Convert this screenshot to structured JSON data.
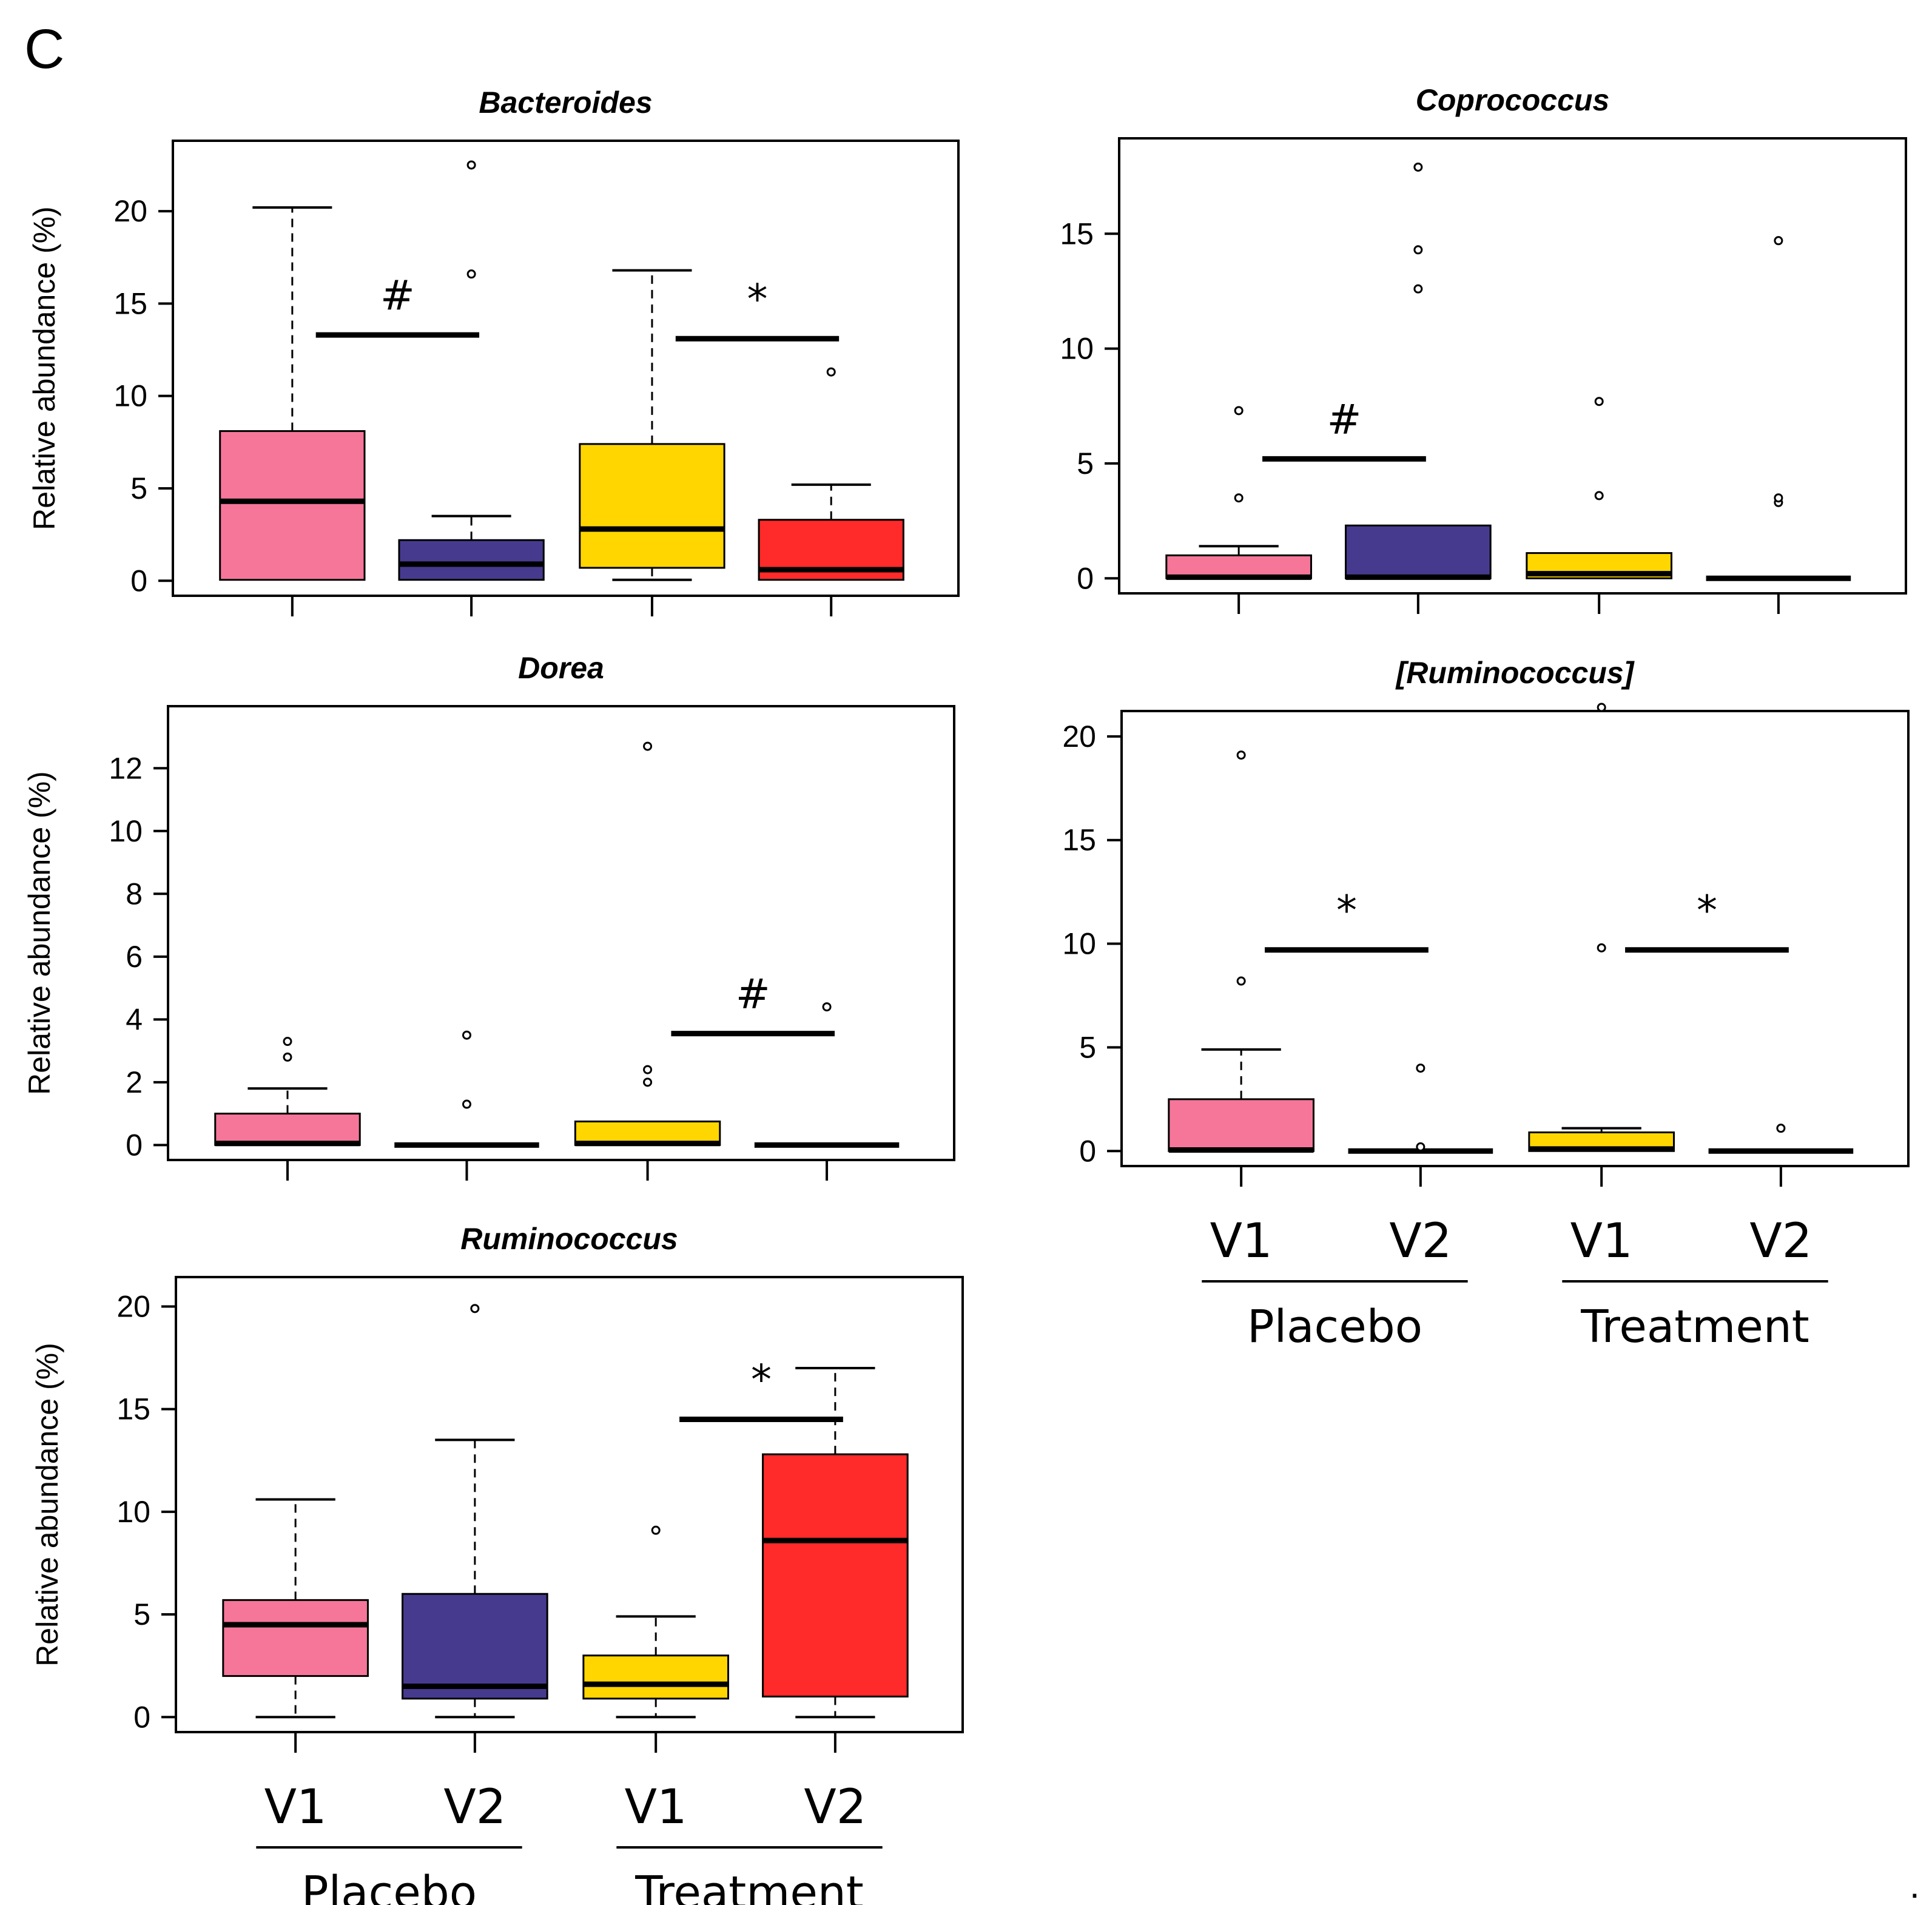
{
  "figure": {
    "panel_letter": "C",
    "trailing_mark": "."
  },
  "chart_data": [
    {
      "type": "box",
      "title": "Bacteroides",
      "xlabel": "",
      "ylabel": "Relative abundance (%)",
      "ylim": [
        0,
        23
      ],
      "yticks": [
        0,
        5,
        10,
        15,
        20
      ],
      "categories": [
        "V1",
        "V2",
        "V1",
        "V2"
      ],
      "groups": [],
      "show_category_labels": false,
      "colors": [
        "#F6769A",
        "#463A8F",
        "#FFD600",
        "#FF2A2A"
      ],
      "boxes": [
        {
          "q1": 0.05,
          "median": 4.3,
          "q3": 8.1,
          "whisker_low": 0.05,
          "whisker_high": 20.2,
          "outliers": []
        },
        {
          "q1": 0.05,
          "median": 0.9,
          "q3": 2.2,
          "whisker_low": 0.05,
          "whisker_high": 3.5,
          "outliers": [
            16.6,
            22.5
          ]
        },
        {
          "q1": 0.7,
          "median": 2.8,
          "q3": 7.4,
          "whisker_low": 0.05,
          "whisker_high": 16.8,
          "outliers": []
        },
        {
          "q1": 0.05,
          "median": 0.6,
          "q3": 3.3,
          "whisker_low": 0.05,
          "whisker_high": 5.2,
          "outliers": [
            11.3
          ]
        }
      ],
      "annotations": [
        {
          "symbol": "#",
          "from": 0,
          "to": 1,
          "y": 13.3
        },
        {
          "symbol": "*",
          "from": 2,
          "to": 3,
          "y": 13.1
        }
      ]
    },
    {
      "type": "box",
      "title": "Coprococcus",
      "xlabel": "",
      "ylabel": "",
      "ylim": [
        0,
        18.5
      ],
      "yticks": [
        0,
        5,
        10,
        15
      ],
      "categories": [
        "V1",
        "V2",
        "V1",
        "V2"
      ],
      "groups": [],
      "show_category_labels": false,
      "colors": [
        "#F6769A",
        "#463A8F",
        "#FFD600",
        "#FF2A2A"
      ],
      "boxes": [
        {
          "q1": 0.0,
          "median": 0.05,
          "q3": 1.0,
          "whisker_low": 0.0,
          "whisker_high": 1.4,
          "outliers": [
            3.5,
            7.3
          ]
        },
        {
          "q1": 0.0,
          "median": 0.05,
          "q3": 2.3,
          "whisker_low": 0.0,
          "whisker_high": 2.3,
          "outliers": [
            12.6,
            14.3,
            17.9
          ]
        },
        {
          "q1": 0.0,
          "median": 0.2,
          "q3": 1.1,
          "whisker_low": 0.0,
          "whisker_high": 1.1,
          "outliers": [
            3.6,
            7.7
          ]
        },
        {
          "q1": 0.0,
          "median": 0.0,
          "q3": 0.0,
          "whisker_low": 0.0,
          "whisker_high": 0.0,
          "outliers": [
            3.3,
            3.5,
            14.7
          ]
        }
      ],
      "annotations": [
        {
          "symbol": "#",
          "from": 0,
          "to": 1,
          "y": 5.2
        }
      ]
    },
    {
      "type": "box",
      "title": "Dorea",
      "xlabel": "",
      "ylabel": "Relative abundance (%)",
      "ylim": [
        0,
        13.5
      ],
      "yticks": [
        0,
        2,
        4,
        6,
        8,
        10,
        12
      ],
      "categories": [
        "V1",
        "V2",
        "V1",
        "V2"
      ],
      "groups": [],
      "show_category_labels": false,
      "colors": [
        "#F6769A",
        "#463A8F",
        "#FFD600",
        "#FF2A2A"
      ],
      "boxes": [
        {
          "q1": 0.0,
          "median": 0.05,
          "q3": 1.0,
          "whisker_low": 0.0,
          "whisker_high": 1.8,
          "outliers": [
            2.8,
            3.3
          ]
        },
        {
          "q1": 0.0,
          "median": 0.0,
          "q3": 0.0,
          "whisker_low": 0.0,
          "whisker_high": 0.0,
          "outliers": [
            1.3,
            3.5
          ]
        },
        {
          "q1": 0.0,
          "median": 0.05,
          "q3": 0.75,
          "whisker_low": 0.0,
          "whisker_high": 0.75,
          "outliers": [
            2.0,
            2.4,
            12.7
          ]
        },
        {
          "q1": 0.0,
          "median": 0.0,
          "q3": 0.0,
          "whisker_low": 0.0,
          "whisker_high": 0.0,
          "outliers": [
            4.4
          ]
        }
      ],
      "annotations": [
        {
          "symbol": "#",
          "from": 2,
          "to": 3,
          "y": 3.55
        }
      ]
    },
    {
      "type": "box",
      "title": "[Ruminococcus]",
      "xlabel": "",
      "ylabel": "",
      "ylim": [
        0,
        20.5
      ],
      "yticks": [
        0,
        5,
        10,
        15,
        20
      ],
      "categories": [
        "V1",
        "V2",
        "V1",
        "V2"
      ],
      "groups": [
        "Placebo",
        "Treatment"
      ],
      "show_category_labels": true,
      "colors": [
        "#F6769A",
        "#463A8F",
        "#FFD600",
        "#FF2A2A"
      ],
      "boxes": [
        {
          "q1": 0.0,
          "median": 0.05,
          "q3": 2.5,
          "whisker_low": 0.0,
          "whisker_high": 4.9,
          "outliers": [
            8.2,
            19.1
          ]
        },
        {
          "q1": 0.0,
          "median": 0.0,
          "q3": 0.0,
          "whisker_low": 0.0,
          "whisker_high": 0.0,
          "outliers": [
            0.2,
            4.0
          ]
        },
        {
          "q1": 0.0,
          "median": 0.1,
          "q3": 0.9,
          "whisker_low": 0.0,
          "whisker_high": 1.1,
          "outliers": [
            9.8,
            21.4
          ]
        },
        {
          "q1": 0.0,
          "median": 0.0,
          "q3": 0.0,
          "whisker_low": 0.0,
          "whisker_high": 0.0,
          "outliers": [
            1.1
          ]
        }
      ],
      "annotations": [
        {
          "symbol": "*",
          "from": 0,
          "to": 1,
          "y": 9.7
        },
        {
          "symbol": "*",
          "from": 2,
          "to": 3,
          "y": 9.7
        }
      ]
    },
    {
      "type": "box",
      "title": "Ruminococcus",
      "xlabel": "",
      "ylabel": "Relative abundance (%)",
      "ylim": [
        0,
        20.7
      ],
      "yticks": [
        0,
        5,
        10,
        15,
        20
      ],
      "categories": [
        "V1",
        "V2",
        "V1",
        "V2"
      ],
      "groups": [
        "Placebo",
        "Treatment"
      ],
      "show_category_labels": true,
      "colors": [
        "#F6769A",
        "#463A8F",
        "#FFD600",
        "#FF2A2A"
      ],
      "boxes": [
        {
          "q1": 2.0,
          "median": 4.5,
          "q3": 5.7,
          "whisker_low": 0.0,
          "whisker_high": 10.6,
          "outliers": []
        },
        {
          "q1": 0.9,
          "median": 1.5,
          "q3": 6.0,
          "whisker_low": 0.0,
          "whisker_high": 13.5,
          "outliers": [
            19.9
          ]
        },
        {
          "q1": 0.9,
          "median": 1.6,
          "q3": 3.0,
          "whisker_low": 0.0,
          "whisker_high": 4.9,
          "outliers": [
            9.1
          ]
        },
        {
          "q1": 1.0,
          "median": 8.6,
          "q3": 12.8,
          "whisker_low": 0.0,
          "whisker_high": 17.0,
          "outliers": []
        }
      ],
      "annotations": [
        {
          "symbol": "*",
          "from": 2,
          "to": 3,
          "y": 14.5
        }
      ]
    }
  ]
}
